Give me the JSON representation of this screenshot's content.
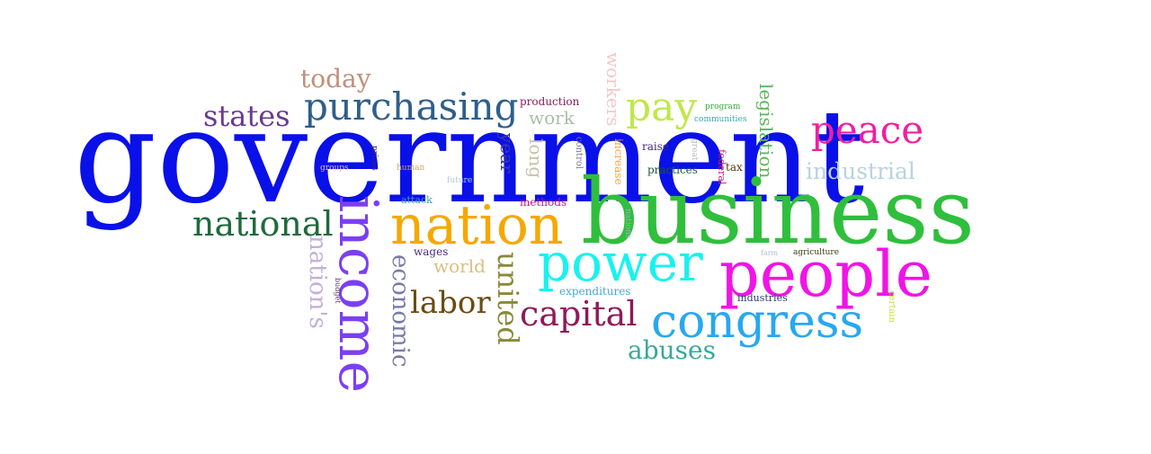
{
  "words": [
    {
      "text": "government",
      "color": "#0a10e8"
    },
    {
      "text": "business",
      "color": "#2fbf3c"
    },
    {
      "text": "people",
      "color": "#f014e6"
    },
    {
      "text": "income",
      "color": "#7b3ff2"
    },
    {
      "text": "nation",
      "color": "#f5a800"
    },
    {
      "text": "power",
      "color": "#19f2f0"
    },
    {
      "text": "congress",
      "color": "#27a8f0"
    },
    {
      "text": "peace",
      "color": "#f01fa0"
    },
    {
      "text": "purchasing",
      "color": "#2f5f8a"
    },
    {
      "text": "national",
      "color": "#1f6a3c"
    },
    {
      "text": "capital",
      "color": "#8f1a5a"
    },
    {
      "text": "labor",
      "color": "#6a4a10"
    },
    {
      "text": "pay",
      "color": "#bfe84a"
    },
    {
      "text": "states",
      "color": "#6a3a8f"
    },
    {
      "text": "today",
      "color": "#c0907a"
    },
    {
      "text": "industrial",
      "color": "#b8d3e0"
    },
    {
      "text": "united",
      "color": "#8a8a3a"
    },
    {
      "text": "economic",
      "color": "#7a7aa8"
    },
    {
      "text": "abuses",
      "color": "#3aa89a"
    },
    {
      "text": "nation's",
      "color": "#c4b0d8"
    },
    {
      "text": "legislation",
      "color": "#58b858"
    },
    {
      "text": "workers",
      "color": "#f5c8c8"
    },
    {
      "text": "world",
      "color": "#d8c080"
    },
    {
      "text": "long",
      "color": "#c8c0a8"
    },
    {
      "text": "year",
      "color": "#3a3aa0"
    },
    {
      "text": "work",
      "color": "#a8c0a8"
    },
    {
      "text": "production",
      "color": "#8a1a5a"
    },
    {
      "text": "increase",
      "color": "#f5a040"
    },
    {
      "text": "raise",
      "color": "#4a2a70"
    },
    {
      "text": "practices",
      "color": "#1a5a3a"
    },
    {
      "text": "federal",
      "color": "#d01a6a"
    },
    {
      "text": "tax",
      "color": "#4a3a10"
    },
    {
      "text": "great",
      "color": "#b8b8b8"
    },
    {
      "text": "control",
      "color": "#7a7a9a"
    },
    {
      "text": "program",
      "color": "#3aa83a"
    },
    {
      "text": "communities",
      "color": "#3aa8a8"
    },
    {
      "text": "wages",
      "color": "#4a2a8a"
    },
    {
      "text": "methods",
      "color": "#c01a8a"
    },
    {
      "text": "attack",
      "color": "#3a9ac8"
    },
    {
      "text": "human",
      "color": "#c8a860"
    },
    {
      "text": "prices",
      "color": "#3a2a6a"
    },
    {
      "text": "groups",
      "color": "#d8c0a8"
    },
    {
      "text": "future",
      "color": "#b0c8d8"
    },
    {
      "text": "nations",
      "color": "#a0b0b8"
    },
    {
      "text": "expenditures",
      "color": "#48a8d8"
    },
    {
      "text": "industries",
      "color": "#2a3a6a"
    },
    {
      "text": "farm",
      "color": "#b0c0d0"
    },
    {
      "text": "agriculture",
      "color": "#3a3a10"
    },
    {
      "text": "certain",
      "color": "#c8e040"
    },
    {
      "text": "budget",
      "color": "#5a3a5a"
    }
  ]
}
